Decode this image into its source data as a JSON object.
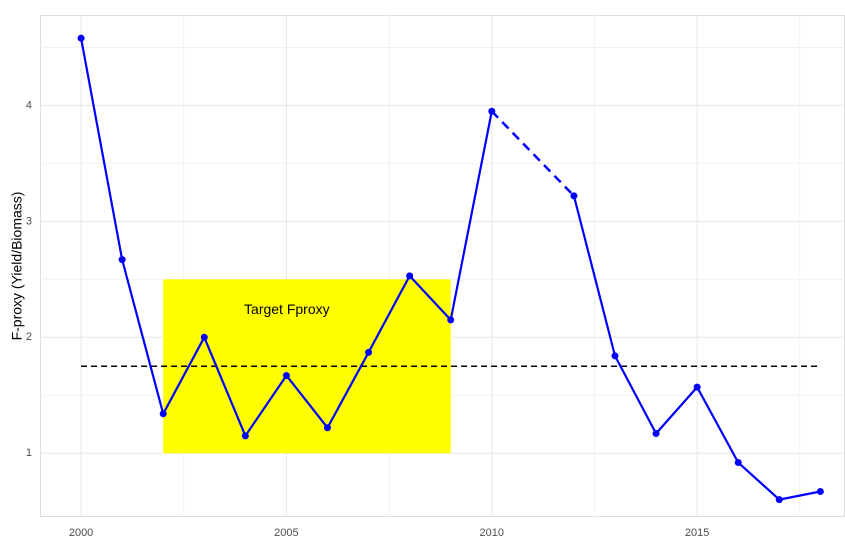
{
  "chart_data": {
    "type": "line",
    "y_label": "F-proxy (Yield/Biomass)",
    "x": [
      2000,
      2001,
      2002,
      2003,
      2004,
      2005,
      2006,
      2007,
      2008,
      2009,
      2010,
      2011,
      2012,
      2013,
      2014,
      2015,
      2016,
      2017,
      2018
    ],
    "series": [
      {
        "name": "F-proxy",
        "color": "#0000ff",
        "values": [
          4.58,
          2.67,
          1.34,
          2.0,
          1.15,
          1.67,
          1.22,
          1.87,
          2.53,
          2.15,
          3.95,
          null,
          3.22,
          1.84,
          1.17,
          1.57,
          0.92,
          0.6,
          0.67
        ]
      }
    ],
    "gap_style": "dashed",
    "reference_line": {
      "value": 1.75,
      "x": [
        2000,
        2018
      ],
      "color": "#000000",
      "style": "dashed"
    },
    "target_band": {
      "label": "Target Fproxy",
      "x": [
        2002,
        2009
      ],
      "y": [
        1,
        2.5
      ],
      "color": "#ffff00"
    },
    "xlim": [
      1999,
      2018.6
    ],
    "ylim": [
      0.45,
      4.78
    ],
    "xticks": [
      2000,
      2005,
      2010,
      2015
    ],
    "yticks": [
      1,
      2,
      3,
      4
    ],
    "xminor": [
      2002.5,
      2007.5,
      2012.5,
      2017.5
    ],
    "yminor": [
      1.5,
      2.5,
      3.5,
      4.5
    ],
    "grid": true
  }
}
